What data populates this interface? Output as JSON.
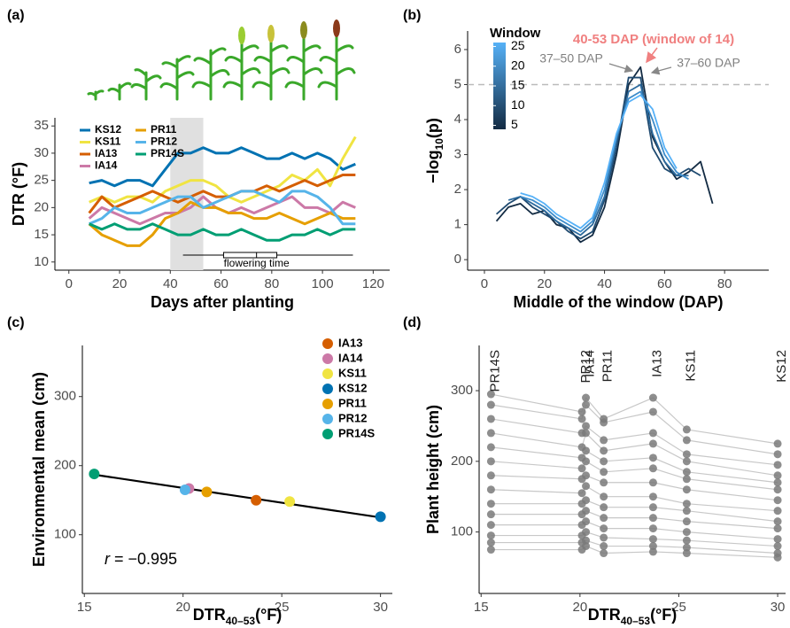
{
  "chart_data": [
    {
      "type": "line",
      "panel_label": "(a)",
      "x_label": "Days after planting",
      "y_label": "DTR (°F)",
      "x": [
        8,
        13,
        18,
        23,
        28,
        33,
        38,
        43,
        48,
        53,
        58,
        63,
        68,
        73,
        78,
        83,
        88,
        93,
        98,
        103,
        108,
        113
      ],
      "series": [
        {
          "name": "KS12",
          "color": "#0072b2",
          "values": [
            24.5,
            25,
            24,
            25,
            25,
            24,
            27,
            30,
            30,
            31,
            30,
            30,
            31,
            30,
            29,
            29,
            30,
            29,
            30,
            29,
            27,
            28
          ]
        },
        {
          "name": "KS11",
          "color": "#f0e442",
          "values": [
            21,
            22,
            21,
            22,
            22,
            21,
            23,
            24,
            25,
            25,
            24,
            22,
            21,
            22,
            23,
            24,
            26,
            25,
            27,
            24,
            29,
            33
          ]
        },
        {
          "name": "IA13",
          "color": "#d55e00",
          "values": [
            19,
            22,
            20,
            21,
            22,
            23,
            22,
            21,
            22,
            23,
            22,
            22,
            23,
            23,
            24,
            23,
            24,
            25,
            24,
            25,
            26,
            26
          ]
        },
        {
          "name": "IA14",
          "color": "#cc79a7",
          "values": [
            18,
            20,
            19,
            18,
            17,
            18,
            19,
            19,
            20,
            22,
            20,
            19,
            20,
            19,
            20,
            21,
            22,
            20,
            20,
            19,
            21,
            20
          ]
        },
        {
          "name": "PR11",
          "color": "#e69f00",
          "values": [
            17,
            15,
            14,
            13,
            13,
            15,
            18,
            19,
            21,
            20,
            20,
            19,
            19,
            18,
            18,
            19,
            18,
            17,
            18,
            19,
            18,
            18
          ]
        },
        {
          "name": "PR12",
          "color": "#56b4e9",
          "values": [
            17,
            18,
            20,
            19,
            19,
            20,
            21,
            22,
            22,
            20,
            21,
            22,
            23,
            23,
            22,
            21,
            23,
            23,
            22,
            20,
            17,
            17
          ]
        },
        {
          "name": "PR14S",
          "color": "#009e73",
          "values": [
            17,
            16,
            17,
            16,
            16,
            17,
            16,
            15,
            15,
            16,
            15,
            15,
            16,
            15,
            14,
            14,
            15,
            15,
            16,
            15,
            16,
            16
          ]
        }
      ],
      "shaded_window": [
        40,
        53
      ],
      "flowering_time": {
        "label": "flowering time",
        "start": 45,
        "end": 112,
        "box": [
          61,
          82
        ],
        "median": 74
      },
      "xlim": [
        -5.5,
        126.5
      ],
      "xticks": [
        0,
        20,
        40,
        60,
        80,
        100,
        120
      ],
      "ylim": [
        8.5,
        36.5
      ],
      "yticks": [
        10,
        15,
        20,
        25,
        30,
        35
      ]
    },
    {
      "type": "line",
      "panel_label": "(b)",
      "x_label": "Middle of the window (DAP)",
      "y_label": {
        "prefix": "−log",
        "sub": "10",
        "suffix": "(p)"
      },
      "x": [
        4,
        8,
        12,
        16,
        20,
        24,
        28,
        32,
        36,
        40,
        44,
        48,
        52,
        56,
        60,
        64,
        68,
        72,
        76
      ],
      "series": [
        {
          "color": "#132b43",
          "values": [
            1.1,
            1.5,
            1.6,
            1.3,
            1.4,
            1.0,
            0.9,
            0.5,
            0.7,
            1.5,
            3.0,
            5.0,
            5.5,
            3.5,
            2.8,
            2.3,
            2.5,
            2.8,
            1.6
          ]
        },
        {
          "color": "#1f4a70",
          "values": [
            1.3,
            1.6,
            1.8,
            1.5,
            1.3,
            1.1,
            0.8,
            0.6,
            0.8,
            1.7,
            3.2,
            5.2,
            5.2,
            3.2,
            2.6,
            2.4,
            2.6,
            2.4,
            null
          ]
        },
        {
          "color": "#2c6a9d",
          "values": [
            null,
            1.7,
            1.8,
            1.6,
            1.4,
            1.1,
            0.9,
            0.7,
            1.0,
            1.8,
            3.4,
            4.8,
            5.0,
            3.6,
            2.8,
            2.4,
            2.4,
            null,
            null
          ]
        },
        {
          "color": "#3d8cca",
          "values": [
            null,
            null,
            1.8,
            1.7,
            1.5,
            1.2,
            1.0,
            0.8,
            1.1,
            2.0,
            3.5,
            4.6,
            4.8,
            4.0,
            3.0,
            2.5,
            2.3,
            null,
            null
          ]
        },
        {
          "color": "#56b1f7",
          "values": [
            null,
            null,
            1.9,
            1.8,
            1.6,
            1.3,
            1.1,
            0.9,
            1.2,
            2.2,
            3.6,
            4.5,
            4.7,
            4.3,
            3.2,
            2.6,
            null,
            null,
            null
          ]
        }
      ],
      "threshold": 5,
      "colorbar": {
        "title": "Window",
        "ticks": [
          5,
          10,
          15,
          20,
          25
        ],
        "lim": [
          4,
          26
        ],
        "colors": [
          "#132b43",
          "#56b1f7"
        ]
      },
      "annotations": [
        "40-53 DAP (window of 14)",
        "37–50 DAP",
        "37–60 DAP"
      ],
      "xlim": [
        -5.6,
        94.7
      ],
      "xticks": [
        0,
        20,
        40,
        60,
        80
      ],
      "ylim": [
        -0.3,
        6.53
      ],
      "yticks": [
        0,
        1,
        2,
        3,
        4,
        5,
        6
      ]
    },
    {
      "type": "scatter",
      "panel_label": "(c)",
      "x_label": {
        "prefix": "DTR",
        "sub": "40–53",
        "suffix": "(°F)"
      },
      "y_label": "Environmental mean (cm)",
      "categories": [
        "IA13",
        "IA14",
        "KS11",
        "KS12",
        "PR11",
        "PR12",
        "PR14S"
      ],
      "colors": [
        "#d55e00",
        "#cc79a7",
        "#f0e442",
        "#0072b2",
        "#e69f00",
        "#56b4e9",
        "#009e73"
      ],
      "x": [
        23.7,
        20.3,
        25.4,
        30.0,
        21.2,
        20.1,
        15.5
      ],
      "values": [
        150,
        167,
        148,
        126,
        162,
        165,
        188
      ],
      "fit_line": {
        "x": [
          15.5,
          30
        ],
        "y": [
          187,
          125
        ]
      },
      "annotation": {
        "symbol": "r",
        "text": " = −0.995"
      },
      "xlim": [
        14.9,
        30.6
      ],
      "xticks": [
        15,
        20,
        25,
        30
      ],
      "ylim": [
        15,
        374
      ],
      "yticks": [
        100,
        200,
        300
      ]
    },
    {
      "type": "line",
      "panel_label": "(d)",
      "x_label": {
        "prefix": "DTR",
        "sub": "40–53",
        "suffix": "(°F)"
      },
      "y_label": "Plant height (cm)",
      "categories": [
        "PR14S",
        "PR12",
        "IA14",
        "PR11",
        "IA13",
        "KS11",
        "KS12"
      ],
      "x": [
        15.5,
        20.1,
        20.3,
        21.2,
        23.7,
        25.4,
        30.0
      ],
      "line_color": "#c8c8c8",
      "point_color": "#7a7a7a",
      "series": [
        {
          "values": [
            295,
            270,
            290,
            260,
            290,
            245,
            225
          ]
        },
        {
          "values": [
            280,
            260,
            280,
            255,
            270,
            230,
            210
          ]
        },
        {
          "values": [
            260,
            240,
            250,
            230,
            240,
            210,
            195
          ]
        },
        {
          "values": [
            240,
            220,
            240,
            215,
            225,
            200,
            180
          ]
        },
        {
          "values": [
            220,
            205,
            215,
            200,
            205,
            185,
            170
          ]
        },
        {
          "values": [
            200,
            190,
            200,
            185,
            190,
            175,
            160
          ]
        },
        {
          "values": [
            180,
            175,
            180,
            170,
            170,
            160,
            145
          ]
        },
        {
          "values": [
            160,
            155,
            165,
            150,
            150,
            140,
            130
          ]
        },
        {
          "values": [
            140,
            140,
            145,
            135,
            135,
            130,
            115
          ]
        },
        {
          "values": [
            125,
            125,
            130,
            120,
            120,
            115,
            105
          ]
        },
        {
          "values": [
            110,
            110,
            115,
            105,
            105,
            100,
            90
          ]
        },
        {
          "values": [
            95,
            95,
            100,
            92,
            90,
            88,
            80
          ]
        },
        {
          "values": [
            85,
            85,
            88,
            80,
            80,
            78,
            70
          ]
        },
        {
          "values": [
            75,
            75,
            80,
            70,
            72,
            70,
            64
          ]
        }
      ],
      "xlim": [
        14.9,
        30.4
      ],
      "xticks": [
        15,
        20,
        25,
        30
      ],
      "ylim": [
        13,
        364
      ],
      "yticks": [
        100,
        200,
        300
      ]
    }
  ]
}
